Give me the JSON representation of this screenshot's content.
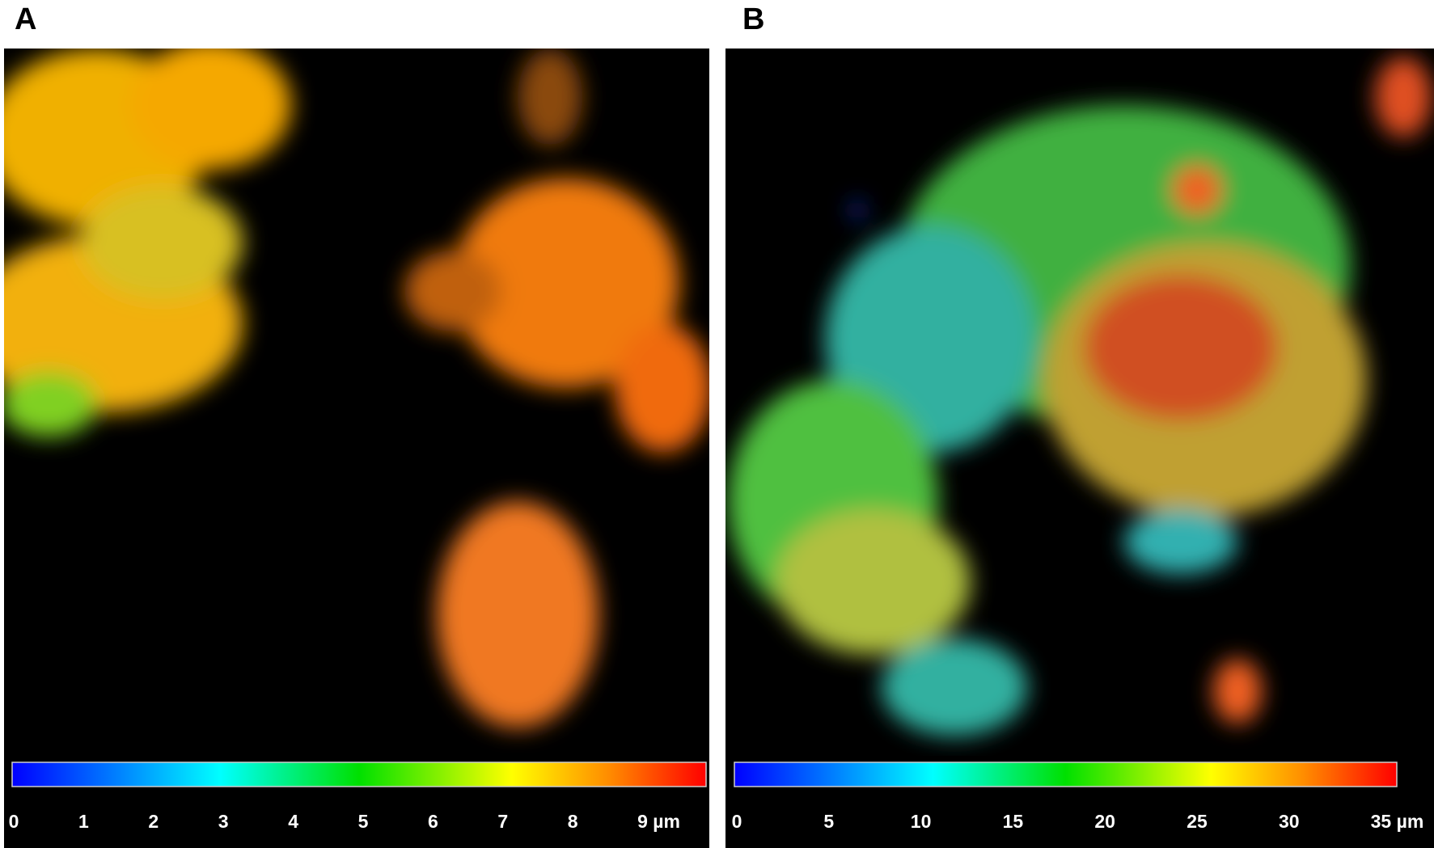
{
  "panels": [
    {
      "label": "A",
      "colorbar": {
        "ticks": [
          "0",
          "1",
          "2",
          "3",
          "4",
          "5",
          "6",
          "7",
          "8",
          "9 µm"
        ]
      }
    },
    {
      "label": "B",
      "colorbar": {
        "ticks": [
          "0",
          "5",
          "10",
          "15",
          "20",
          "25",
          "30",
          "35 µm"
        ]
      }
    }
  ]
}
